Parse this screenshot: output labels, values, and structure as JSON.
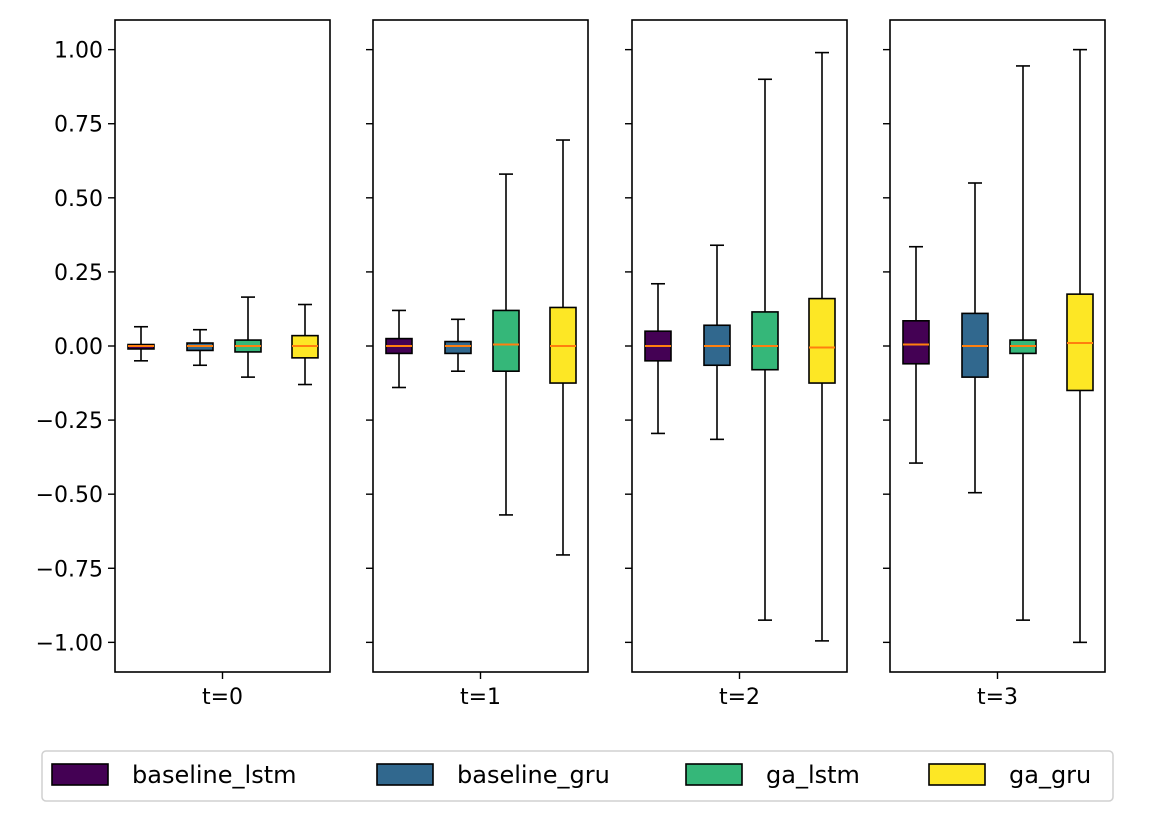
{
  "chart_data": {
    "type": "boxplot",
    "title": "",
    "xlabel": "",
    "ylabel": "",
    "ylim": [
      -1.1,
      1.1
    ],
    "yticks": [
      1.0,
      0.75,
      0.5,
      0.25,
      0.0,
      -0.25,
      -0.5,
      -0.75,
      -1.0
    ],
    "ytick_labels": [
      "1.00",
      "0.75",
      "0.50",
      "0.25",
      "0.00",
      "−0.25",
      "−0.50",
      "−0.75",
      "−1.00"
    ],
    "grid": false,
    "legend_position": "bottom",
    "series": [
      {
        "name": "baseline_lstm",
        "color": "#440154"
      },
      {
        "name": "baseline_gru",
        "color": "#31688e"
      },
      {
        "name": "ga_lstm",
        "color": "#35b779"
      },
      {
        "name": "ga_gru",
        "color": "#fde725"
      }
    ],
    "median_color": "#ff7f0e",
    "panels": [
      {
        "label": "t=0",
        "boxes": [
          {
            "series": "baseline_lstm",
            "whisker_low": -0.05,
            "q1": -0.01,
            "median": 0.0,
            "q3": 0.005,
            "whisker_high": 0.065
          },
          {
            "series": "baseline_gru",
            "whisker_low": -0.065,
            "q1": -0.015,
            "median": 0.0,
            "q3": 0.01,
            "whisker_high": 0.055
          },
          {
            "series": "ga_lstm",
            "whisker_low": -0.105,
            "q1": -0.02,
            "median": 0.0,
            "q3": 0.02,
            "whisker_high": 0.165
          },
          {
            "series": "ga_gru",
            "whisker_low": -0.13,
            "q1": -0.04,
            "median": 0.0,
            "q3": 0.035,
            "whisker_high": 0.14
          }
        ]
      },
      {
        "label": "t=1",
        "boxes": [
          {
            "series": "baseline_lstm",
            "whisker_low": -0.14,
            "q1": -0.025,
            "median": 0.0,
            "q3": 0.025,
            "whisker_high": 0.12
          },
          {
            "series": "baseline_gru",
            "whisker_low": -0.085,
            "q1": -0.025,
            "median": 0.0,
            "q3": 0.015,
            "whisker_high": 0.09
          },
          {
            "series": "ga_lstm",
            "whisker_low": -0.57,
            "q1": -0.085,
            "median": 0.005,
            "q3": 0.12,
            "whisker_high": 0.58
          },
          {
            "series": "ga_gru",
            "whisker_low": -0.705,
            "q1": -0.125,
            "median": 0.0,
            "q3": 0.13,
            "whisker_high": 0.695
          }
        ]
      },
      {
        "label": "t=2",
        "boxes": [
          {
            "series": "baseline_lstm",
            "whisker_low": -0.295,
            "q1": -0.05,
            "median": 0.0,
            "q3": 0.05,
            "whisker_high": 0.21
          },
          {
            "series": "baseline_gru",
            "whisker_low": -0.315,
            "q1": -0.065,
            "median": 0.0,
            "q3": 0.07,
            "whisker_high": 0.34
          },
          {
            "series": "ga_lstm",
            "whisker_low": -0.925,
            "q1": -0.08,
            "median": 0.0,
            "q3": 0.115,
            "whisker_high": 0.9
          },
          {
            "series": "ga_gru",
            "whisker_low": -0.995,
            "q1": -0.125,
            "median": -0.005,
            "q3": 0.16,
            "whisker_high": 0.99
          }
        ]
      },
      {
        "label": "t=3",
        "boxes": [
          {
            "series": "baseline_lstm",
            "whisker_low": -0.395,
            "q1": -0.06,
            "median": 0.005,
            "q3": 0.085,
            "whisker_high": 0.335
          },
          {
            "series": "baseline_gru",
            "whisker_low": -0.495,
            "q1": -0.105,
            "median": 0.0,
            "q3": 0.11,
            "whisker_high": 0.55
          },
          {
            "series": "ga_lstm",
            "whisker_low": -0.925,
            "q1": -0.025,
            "median": 0.0,
            "q3": 0.02,
            "whisker_high": 0.945
          },
          {
            "series": "ga_gru",
            "whisker_low": -1.0,
            "q1": -0.15,
            "median": 0.01,
            "q3": 0.175,
            "whisker_high": 1.0
          }
        ]
      }
    ]
  }
}
